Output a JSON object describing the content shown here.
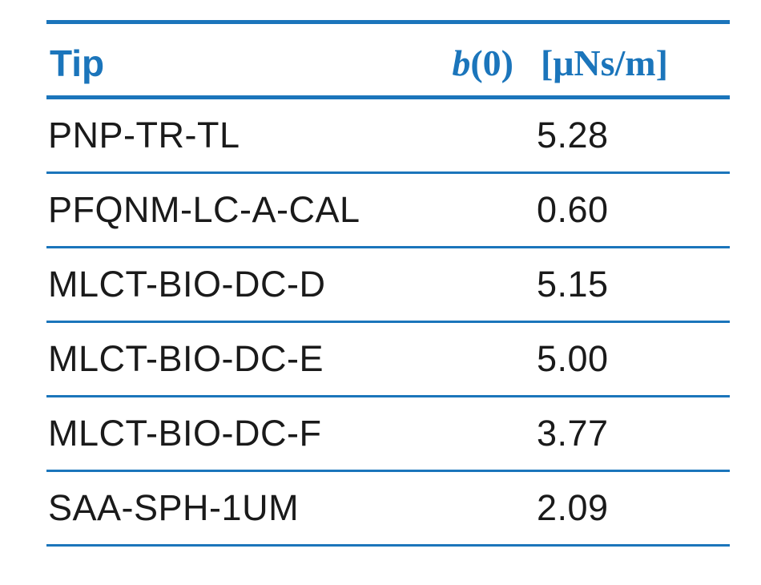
{
  "table": {
    "header": {
      "tip": "Tip",
      "b_symbol": "b",
      "b_arg": "(0)",
      "unit": "[μNs/m]"
    },
    "rows": [
      {
        "tip": "PNP-TR-TL",
        "value": "5.28"
      },
      {
        "tip": "PFQNM-LC-A-CAL",
        "value": "0.60"
      },
      {
        "tip": "MLCT-BIO-DC-D",
        "value": "5.15"
      },
      {
        "tip": "MLCT-BIO-DC-E",
        "value": "5.00"
      },
      {
        "tip": "MLCT-BIO-DC-F",
        "value": "3.77"
      },
      {
        "tip": "SAA-SPH-1UM",
        "value": "2.09"
      }
    ]
  },
  "colors": {
    "accent": "#1b75bb",
    "text": "#1a1a1a"
  }
}
